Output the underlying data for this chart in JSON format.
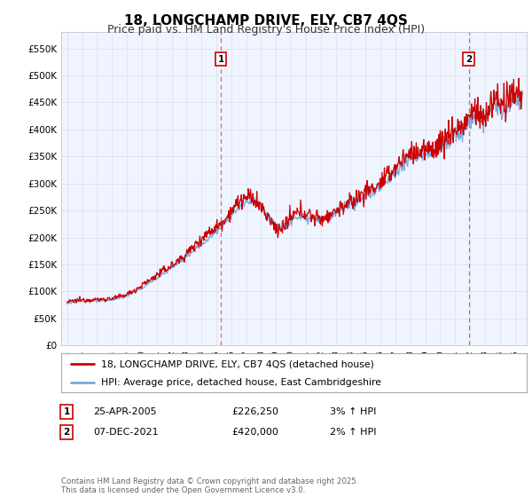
{
  "title": "18, LONGCHAMP DRIVE, ELY, CB7 4QS",
  "subtitle": "Price paid vs. HM Land Registry's House Price Index (HPI)",
  "legend_line1": "18, LONGCHAMP DRIVE, ELY, CB7 4QS (detached house)",
  "legend_line2": "HPI: Average price, detached house, East Cambridgeshire",
  "annotation1_date": "25-APR-2005",
  "annotation1_price": "£226,250",
  "annotation1_hpi": "3% ↑ HPI",
  "annotation1_year": 2005.3,
  "annotation1_value": 226250,
  "annotation2_date": "07-DEC-2021",
  "annotation2_price": "£420,000",
  "annotation2_hpi": "2% ↑ HPI",
  "annotation2_year": 2021.92,
  "annotation2_value": 420000,
  "ylim": [
    0,
    580000
  ],
  "yticks": [
    0,
    50000,
    100000,
    150000,
    200000,
    250000,
    300000,
    350000,
    400000,
    450000,
    500000,
    550000
  ],
  "ytick_labels": [
    "£0",
    "£50K",
    "£100K",
    "£150K",
    "£200K",
    "£250K",
    "£300K",
    "£350K",
    "£400K",
    "£450K",
    "£500K",
    "£550K"
  ],
  "background_color": "#ffffff",
  "plot_bg_color": "#f0f4ff",
  "grid_color": "#d8dff0",
  "line_color_property": "#cc0000",
  "line_color_hpi": "#7aaadd",
  "vline_color": "#dd6666",
  "copyright_text": "Contains HM Land Registry data © Crown copyright and database right 2025.\nThis data is licensed under the Open Government Licence v3.0."
}
